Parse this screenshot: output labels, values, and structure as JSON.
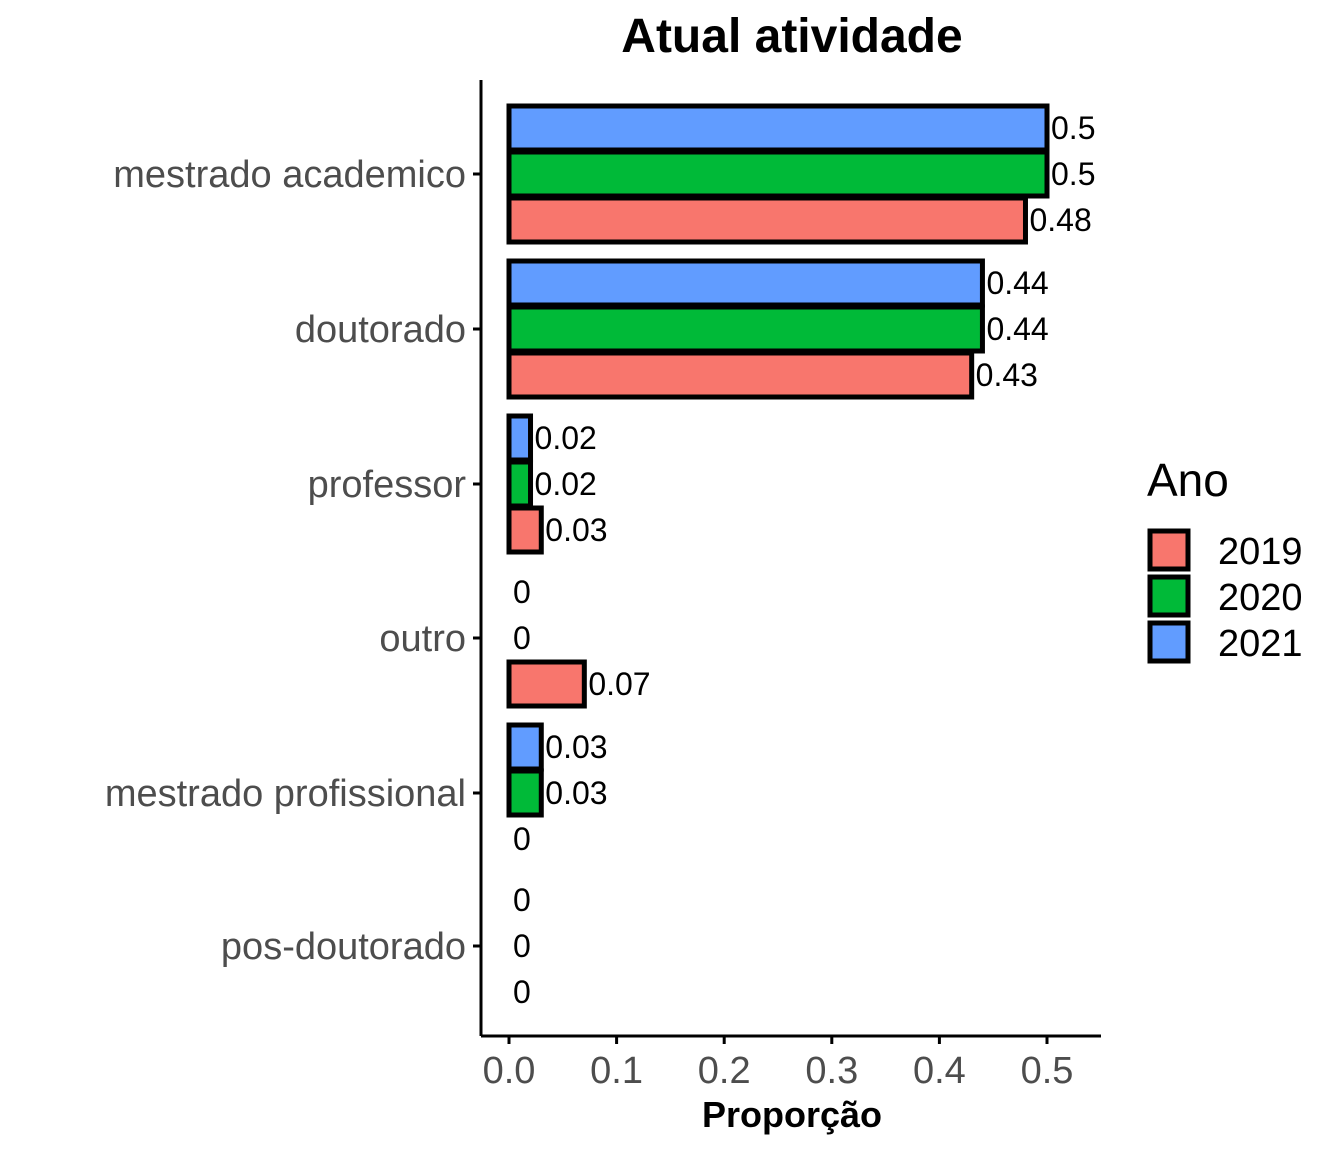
{
  "chart_data": {
    "type": "bar",
    "orientation": "horizontal",
    "title": "Atual atividade",
    "xlabel": "Proporção",
    "ylabel": "",
    "xlim": [
      0,
      0.55
    ],
    "x_ticks": [
      "0.0",
      "0.1",
      "0.2",
      "0.3",
      "0.4",
      "0.5"
    ],
    "x_tick_values": [
      0,
      0.1,
      0.2,
      0.3,
      0.4,
      0.5
    ],
    "categories": [
      "mestrado academico",
      "doutorado",
      "professor",
      "outro",
      "mestrado profissional",
      "pos-doutorado"
    ],
    "series": [
      {
        "name": "2019",
        "color": "#F8766D",
        "values": [
          0.48,
          0.43,
          0.03,
          0.07,
          0,
          0
        ],
        "labels": [
          "0.48",
          "0.43",
          "0.03",
          "0.07",
          "0",
          "0"
        ]
      },
      {
        "name": "2020",
        "color": "#00BA38",
        "values": [
          0.5,
          0.44,
          0.02,
          0,
          0.03,
          0
        ],
        "labels": [
          "0.5",
          "0.44",
          "0.02",
          "0",
          "0.03",
          "0"
        ]
      },
      {
        "name": "2021",
        "color": "#619CFF",
        "values": [
          0.5,
          0.44,
          0.02,
          0,
          0.03,
          0
        ],
        "labels": [
          "0.5",
          "0.44",
          "0.02",
          "0",
          "0.03",
          "0"
        ]
      }
    ],
    "legend": {
      "title": "Ano",
      "position": "right",
      "entries": [
        "2019",
        "2020",
        "2021"
      ]
    },
    "grid": false
  }
}
